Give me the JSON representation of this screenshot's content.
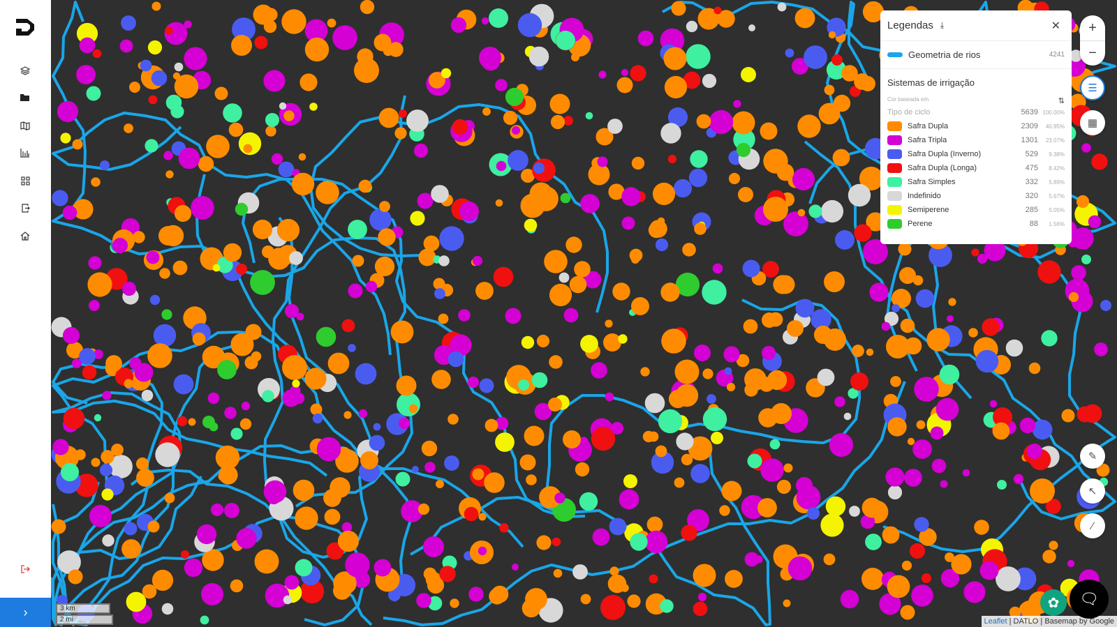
{
  "sidebar": {
    "items": [
      {
        "name": "layers",
        "icon": "layers-icon"
      },
      {
        "name": "folder",
        "icon": "folder-icon"
      },
      {
        "name": "map",
        "icon": "map-icon"
      },
      {
        "name": "charts",
        "icon": "bar-chart-icon"
      },
      {
        "name": "apps",
        "icon": "grid-icon"
      },
      {
        "name": "export",
        "icon": "export-icon"
      },
      {
        "name": "home",
        "icon": "home-icon"
      }
    ],
    "logout_icon": "logout-icon",
    "expand_icon": "chevron-right-icon",
    "accent": "#1e7be0"
  },
  "legend": {
    "title": "Legendas",
    "river": {
      "label": "Geometria de rios",
      "count": "4241",
      "color": "#1aa6e8"
    },
    "section_title": "Sistemas de irrigação",
    "color_based_on": "Cor baseada em",
    "field": "Tipo de ciclo",
    "total": "5639",
    "total_pct": "100.00%",
    "items": [
      {
        "label": "Safra Dupla",
        "count": "2309",
        "pct": "40.95%",
        "color": "#ff8c00"
      },
      {
        "label": "Safra Tripla",
        "count": "1301",
        "pct": "23.07%",
        "color": "#d400d4"
      },
      {
        "label": "Safra Dupla (Inverno)",
        "count": "529",
        "pct": "9.38%",
        "color": "#4a5cf0"
      },
      {
        "label": "Safra Dupla (Longa)",
        "count": "475",
        "pct": "8.42%",
        "color": "#f01010"
      },
      {
        "label": "Safra Simples",
        "count": "332",
        "pct": "5.89%",
        "color": "#3ef0a0"
      },
      {
        "label": "Indefinido",
        "count": "320",
        "pct": "5.67%",
        "color": "#d8d8d8"
      },
      {
        "label": "Semiperene",
        "count": "285",
        "pct": "5.05%",
        "color": "#f4f400"
      },
      {
        "label": "Perene",
        "count": "88",
        "pct": "1.56%",
        "color": "#2ecc2e"
      }
    ]
  },
  "map": {
    "zoom_in": "+",
    "zoom_out": "−",
    "scale_km": "3 km",
    "scale_mi": "2 mi",
    "attribution": {
      "leaflet": "Leaflet",
      "rest": " | DATLO | Basemap by Google"
    }
  }
}
